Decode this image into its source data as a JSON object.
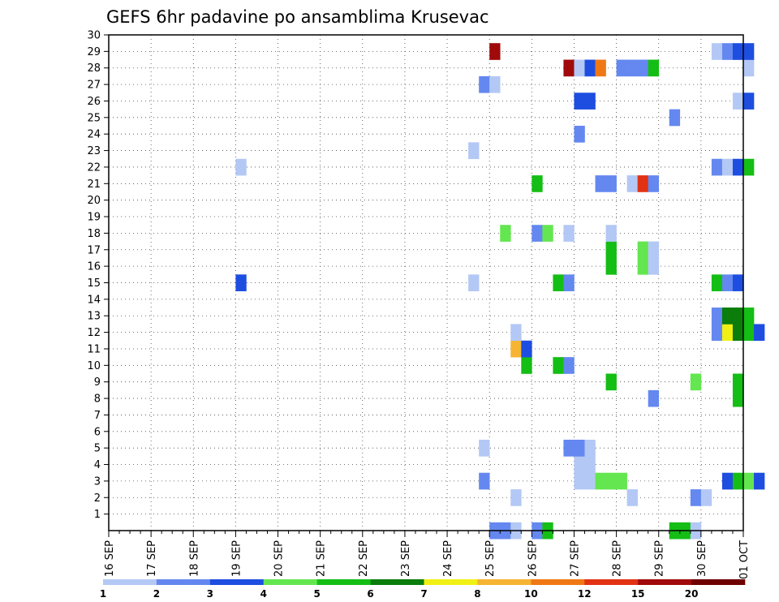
{
  "chart_data": {
    "type": "heatmap",
    "title": "GEFS 6hr padavine po ansamblima Krusevac",
    "xlabel": "",
    "ylabel": "",
    "x_tick_labels": [
      "16 SEP",
      "17 SEP",
      "18 SEP",
      "19 SEP",
      "20 SEP",
      "21 SEP",
      "22 SEP",
      "23 SEP",
      "24 SEP",
      "25 SEP",
      "26 SEP",
      "27 SEP",
      "28 SEP",
      "29 SEP",
      "30 SEP",
      "01 OCT"
    ],
    "x_step_hours": 6,
    "y_range": [
      0,
      30
    ],
    "y_ticks": [
      1,
      2,
      3,
      4,
      5,
      6,
      7,
      8,
      9,
      10,
      11,
      12,
      13,
      14,
      15,
      16,
      17,
      18,
      19,
      20,
      21,
      22,
      23,
      24,
      25,
      26,
      27,
      28,
      29,
      30
    ],
    "grid": true,
    "colorbar": {
      "labels": [
        "1",
        "2",
        "3",
        "4",
        "5",
        "6",
        "7",
        "8",
        "10",
        "12",
        "15",
        "20"
      ],
      "colors": [
        "#b4c8f5",
        "#6488f0",
        "#1e4ee0",
        "#64e650",
        "#14be14",
        "#0a7d0a",
        "#f0f014",
        "#f5b432",
        "#f07814",
        "#e13214",
        "#a00a0a",
        "#6e0000"
      ]
    },
    "cells": [
      {
        "member": 0,
        "steps": [
          36,
          37
        ],
        "level": 2
      },
      {
        "member": 0,
        "step": 38,
        "level": 1
      },
      {
        "member": 0,
        "step": 40,
        "level": 2
      },
      {
        "member": 0,
        "step": 41,
        "level": 5
      },
      {
        "member": 0,
        "steps": [
          53,
          54
        ],
        "level": 5
      },
      {
        "member": 0,
        "step": 55,
        "level": 1
      },
      {
        "member": 2,
        "step": 38,
        "level": 1
      },
      {
        "member": 2,
        "step": 49,
        "level": 1
      },
      {
        "member": 2,
        "step": 55,
        "level": 2
      },
      {
        "member": 2,
        "step": 56,
        "level": 1
      },
      {
        "member": 3,
        "step": 35,
        "level": 2
      },
      {
        "member": 3,
        "step": 58,
        "level": 3
      },
      {
        "member": 3,
        "step": 59,
        "level": 5
      },
      {
        "member": 3,
        "step": 60,
        "level": 4
      },
      {
        "member": 3,
        "step": 61,
        "level": 3
      },
      {
        "member": 3,
        "steps": [
          44,
          45
        ],
        "level": 1
      },
      {
        "member": 3,
        "steps": [
          46,
          47,
          48
        ],
        "level": 4
      },
      {
        "member": 4,
        "steps": [
          44,
          45
        ],
        "level": 1
      },
      {
        "member": 5,
        "step": 35,
        "level": 1
      },
      {
        "member": 5,
        "steps": [
          43,
          44
        ],
        "level": 2
      },
      {
        "member": 5,
        "step": 45,
        "level": 1
      },
      {
        "member": 8,
        "step": 51,
        "level": 2
      },
      {
        "member": 8,
        "step": 59,
        "level": 5
      },
      {
        "member": 9,
        "step": 47,
        "level": 5
      },
      {
        "member": 9,
        "step": 55,
        "level": 4
      },
      {
        "member": 9,
        "step": 59,
        "level": 5
      },
      {
        "member": 10,
        "step": 39,
        "level": 5
      },
      {
        "member": 10,
        "step": 42,
        "level": 5
      },
      {
        "member": 10,
        "step": 43,
        "level": 2
      },
      {
        "member": 11,
        "step": 38,
        "level": 8
      },
      {
        "member": 11,
        "step": 39,
        "level": 3
      },
      {
        "member": 12,
        "step": 38,
        "level": 1
      },
      {
        "member": 12,
        "step": 57,
        "level": 2
      },
      {
        "member": 12,
        "step": 58,
        "level": 7
      },
      {
        "member": 12,
        "step": 59,
        "level": 6
      },
      {
        "member": 12,
        "step": 60,
        "level": 5
      },
      {
        "member": 12,
        "step": 61,
        "level": 3
      },
      {
        "member": 13,
        "step": 57,
        "level": 2
      },
      {
        "member": 13,
        "steps": [
          58,
          59
        ],
        "level": 6
      },
      {
        "member": 13,
        "step": 60,
        "level": 5
      },
      {
        "member": 15,
        "step": 12,
        "level": 3
      },
      {
        "member": 15,
        "step": 34,
        "level": 1
      },
      {
        "member": 15,
        "step": 42,
        "level": 5
      },
      {
        "member": 15,
        "step": 43,
        "level": 2
      },
      {
        "member": 15,
        "step": 57,
        "level": 5
      },
      {
        "member": 15,
        "step": 58,
        "level": 2
      },
      {
        "member": 15,
        "step": 59,
        "level": 3
      },
      {
        "member": 16,
        "step": 47,
        "level": 5
      },
      {
        "member": 16,
        "step": 50,
        "level": 4
      },
      {
        "member": 16,
        "step": 51,
        "level": 1
      },
      {
        "member": 17,
        "step": 47,
        "level": 5
      },
      {
        "member": 17,
        "step": 50,
        "level": 4
      },
      {
        "member": 17,
        "step": 51,
        "level": 1
      },
      {
        "member": 18,
        "step": 37,
        "level": 4
      },
      {
        "member": 18,
        "step": 40,
        "level": 2
      },
      {
        "member": 18,
        "step": 41,
        "level": 4
      },
      {
        "member": 18,
        "step": 43,
        "level": 1
      },
      {
        "member": 18,
        "step": 47,
        "level": 1
      },
      {
        "member": 21,
        "step": 40,
        "level": 5
      },
      {
        "member": 21,
        "steps": [
          46,
          47
        ],
        "level": 2
      },
      {
        "member": 21,
        "step": 49,
        "level": 1
      },
      {
        "member": 21,
        "step": 50,
        "level": 10
      },
      {
        "member": 21,
        "step": 51,
        "level": 2
      },
      {
        "member": 22,
        "step": 12,
        "level": 1
      },
      {
        "member": 22,
        "step": 57,
        "level": 2
      },
      {
        "member": 22,
        "step": 58,
        "level": 1
      },
      {
        "member": 22,
        "step": 59,
        "level": 3
      },
      {
        "member": 22,
        "step": 60,
        "level": 5
      },
      {
        "member": 23,
        "step": 34,
        "level": 1
      },
      {
        "member": 24,
        "step": 44,
        "level": 2
      },
      {
        "member": 25,
        "step": 53,
        "level": 2
      },
      {
        "member": 26,
        "steps": [
          44,
          45
        ],
        "level": 3
      },
      {
        "member": 26,
        "step": 59,
        "level": 1
      },
      {
        "member": 26,
        "step": 60,
        "level": 3
      },
      {
        "member": 27,
        "step": 35,
        "level": 2
      },
      {
        "member": 27,
        "step": 36,
        "level": 1
      },
      {
        "member": 28,
        "step": 43,
        "level": 11
      },
      {
        "member": 28,
        "step": 44,
        "level": 1
      },
      {
        "member": 28,
        "step": 45,
        "level": 3
      },
      {
        "member": 28,
        "step": 46,
        "level": 9
      },
      {
        "member": 28,
        "steps": [
          48,
          49,
          50
        ],
        "level": 2
      },
      {
        "member": 28,
        "step": 51,
        "level": 5
      },
      {
        "member": 28,
        "step": 60,
        "level": 1
      },
      {
        "member": 29,
        "step": 36,
        "level": 11
      },
      {
        "member": 29,
        "step": 57,
        "level": 1
      },
      {
        "member": 29,
        "step": 58,
        "level": 2
      },
      {
        "member": 29,
        "steps": [
          59,
          60
        ],
        "level": 3
      }
    ]
  }
}
